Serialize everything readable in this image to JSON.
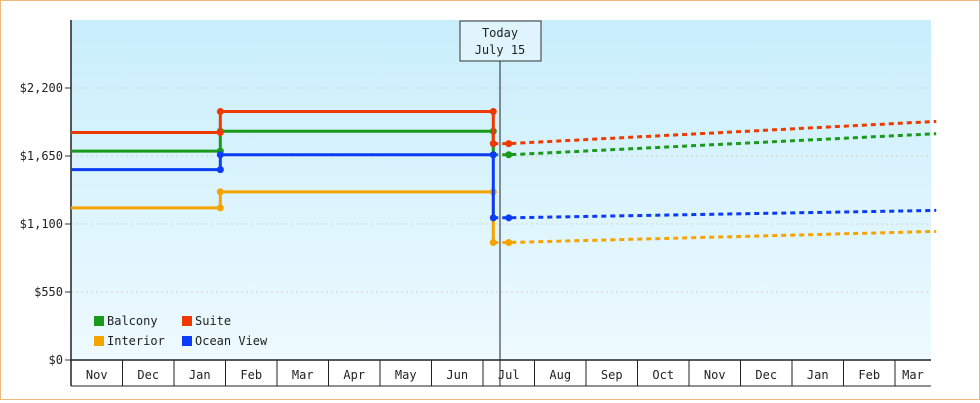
{
  "chart_data": {
    "type": "line",
    "title": "",
    "xlabel": "",
    "ylabel": "",
    "ylim": [
      0,
      2750
    ],
    "y_ticks": [
      "$0",
      "$550",
      "$1,100",
      "$1,650",
      "$2,200"
    ],
    "y_tick_values": [
      0,
      550,
      1100,
      1650,
      2200
    ],
    "x_months": [
      "Nov",
      "Dec",
      "Jan",
      "Feb",
      "Mar",
      "Apr",
      "May",
      "Jun",
      "Jul",
      "Aug",
      "Sep",
      "Oct",
      "Nov",
      "Dec",
      "Jan",
      "Feb",
      "Mar"
    ],
    "today_marker": {
      "line1": "Today",
      "line2": "July 15"
    },
    "legend": {
      "placement": "bottom-left",
      "entries": [
        "Balcony",
        "Suite",
        "Interior",
        "Ocean View"
      ]
    },
    "colors": {
      "Balcony": "#1a9a1a",
      "Suite": "#ee3a00",
      "Interior": "#f5a300",
      "Ocean View": "#0a3cf5",
      "grid": "#d0d0d0",
      "bg_top": "#c8eefb",
      "bg_bottom": "#eefaff"
    },
    "series": [
      {
        "name": "Balcony",
        "history": [
          [
            0,
            1690
          ],
          [
            2.9,
            1690
          ],
          [
            2.9,
            1850
          ],
          [
            8.2,
            1850
          ],
          [
            8.2,
            1660
          ]
        ],
        "forecast": [
          [
            8.2,
            1660
          ],
          [
            8.5,
            1660
          ],
          [
            16.8,
            1830
          ]
        ]
      },
      {
        "name": "Suite",
        "history": [
          [
            0,
            1840
          ],
          [
            2.9,
            1840
          ],
          [
            2.9,
            2010
          ],
          [
            8.2,
            2010
          ],
          [
            8.2,
            1750
          ]
        ],
        "forecast": [
          [
            8.2,
            1750
          ],
          [
            8.5,
            1750
          ],
          [
            16.8,
            1930
          ]
        ]
      },
      {
        "name": "Interior",
        "history": [
          [
            0,
            1230
          ],
          [
            2.9,
            1230
          ],
          [
            2.9,
            1360
          ],
          [
            8.2,
            1360
          ],
          [
            8.2,
            950
          ]
        ],
        "forecast": [
          [
            8.2,
            950
          ],
          [
            8.5,
            950
          ],
          [
            16.8,
            1040
          ]
        ]
      },
      {
        "name": "Ocean View",
        "history": [
          [
            0,
            1540
          ],
          [
            2.9,
            1540
          ],
          [
            2.9,
            1660
          ],
          [
            8.2,
            1660
          ],
          [
            8.2,
            1150
          ]
        ],
        "forecast": [
          [
            8.2,
            1150
          ],
          [
            8.5,
            1150
          ],
          [
            16.8,
            1210
          ]
        ]
      }
    ]
  }
}
